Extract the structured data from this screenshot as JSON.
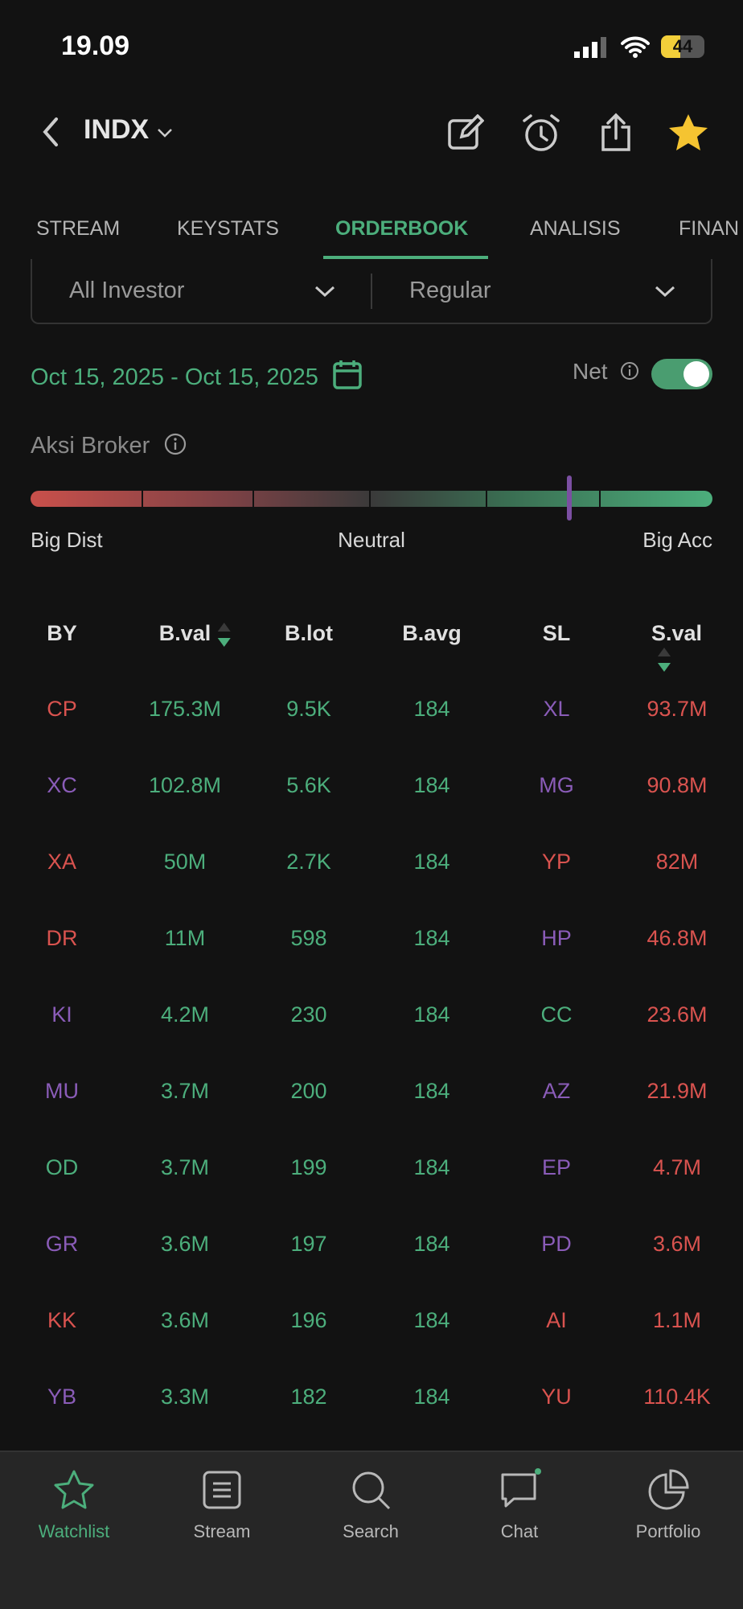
{
  "status": {
    "time": "19.09",
    "battery": "44",
    "battery_level": 44
  },
  "header": {
    "title": "INDX"
  },
  "tabs": [
    {
      "label": "STREAM"
    },
    {
      "label": "KEYSTATS"
    },
    {
      "label": "ORDERBOOK",
      "active": true
    },
    {
      "label": "ANALISIS"
    },
    {
      "label": "FINAN"
    }
  ],
  "filters": {
    "investor": "All Investor",
    "market": "Regular"
  },
  "date_range": "Oct 15, 2025 - Oct 15, 2025",
  "net": {
    "label": "Net",
    "on": true
  },
  "aksi": {
    "title": "Aksi Broker",
    "value": 0.79,
    "left": "Big Dist",
    "center": "Neutral",
    "right": "Big Acc"
  },
  "colors": {
    "green": "#4cae7c",
    "red": "#d9534f",
    "purple": "#8a5cb8"
  },
  "table": {
    "headers": [
      "BY",
      "B.val",
      "B.lot",
      "B.avg",
      "SL",
      "S.val"
    ],
    "rows": [
      {
        "by": "CP",
        "by_c": "red",
        "bval": "175.3M",
        "blot": "9.5K",
        "bavg": "184",
        "sl": "XL",
        "sl_c": "purple",
        "sval": "93.7M"
      },
      {
        "by": "XC",
        "by_c": "purple",
        "bval": "102.8M",
        "blot": "5.6K",
        "bavg": "184",
        "sl": "MG",
        "sl_c": "purple",
        "sval": "90.8M"
      },
      {
        "by": "XA",
        "by_c": "red",
        "bval": "50M",
        "blot": "2.7K",
        "bavg": "184",
        "sl": "YP",
        "sl_c": "red",
        "sval": "82M"
      },
      {
        "by": "DR",
        "by_c": "red",
        "bval": "11M",
        "blot": "598",
        "bavg": "184",
        "sl": "HP",
        "sl_c": "purple",
        "sval": "46.8M"
      },
      {
        "by": "KI",
        "by_c": "purple",
        "bval": "4.2M",
        "blot": "230",
        "bavg": "184",
        "sl": "CC",
        "sl_c": "green",
        "sval": "23.6M"
      },
      {
        "by": "MU",
        "by_c": "purple",
        "bval": "3.7M",
        "blot": "200",
        "bavg": "184",
        "sl": "AZ",
        "sl_c": "purple",
        "sval": "21.9M"
      },
      {
        "by": "OD",
        "by_c": "green",
        "bval": "3.7M",
        "blot": "199",
        "bavg": "184",
        "sl": "EP",
        "sl_c": "purple",
        "sval": "4.7M"
      },
      {
        "by": "GR",
        "by_c": "purple",
        "bval": "3.6M",
        "blot": "197",
        "bavg": "184",
        "sl": "PD",
        "sl_c": "purple",
        "sval": "3.6M"
      },
      {
        "by": "KK",
        "by_c": "red",
        "bval": "3.6M",
        "blot": "196",
        "bavg": "184",
        "sl": "AI",
        "sl_c": "red",
        "sval": "1.1M"
      },
      {
        "by": "YB",
        "by_c": "purple",
        "bval": "3.3M",
        "blot": "182",
        "bavg": "184",
        "sl": "YU",
        "sl_c": "red",
        "sval": "110.4K"
      }
    ]
  },
  "nav": [
    {
      "label": "Watchlist",
      "icon": "star-icon",
      "active": true
    },
    {
      "label": "Stream",
      "icon": "stream-icon"
    },
    {
      "label": "Search",
      "icon": "search-icon"
    },
    {
      "label": "Chat",
      "icon": "chat-icon",
      "badge": true
    },
    {
      "label": "Portfolio",
      "icon": "pie-chart-icon"
    }
  ]
}
